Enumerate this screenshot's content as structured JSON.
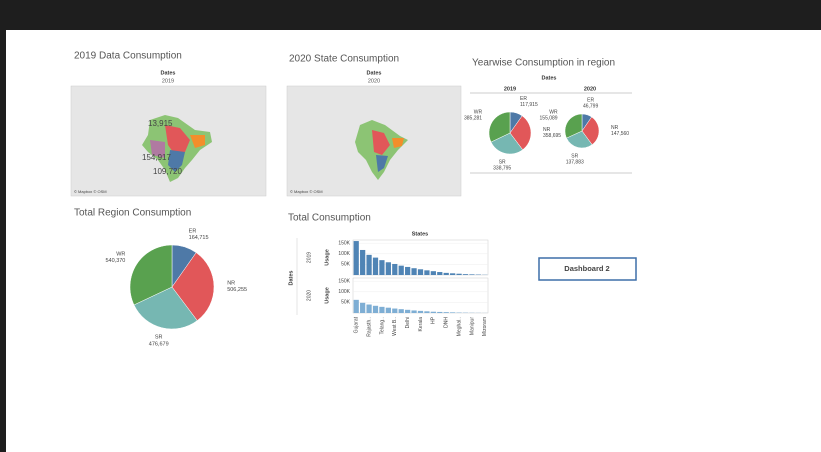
{
  "map_2019": {
    "title": "2019 Data Consumption",
    "header": "Dates",
    "year": "2019",
    "labels": [
      "13,915",
      "154,917",
      "109,720"
    ],
    "attribution": "© Mapbox © OSM"
  },
  "map_2020": {
    "title": "2020 State Consumption",
    "header": "Dates",
    "year": "2020",
    "attribution": "© Mapbox © OSM"
  },
  "yearwise": {
    "title": "Yearwise Consumption in region",
    "header": "Dates",
    "pies": [
      {
        "year": "2019",
        "categories": [
          "ER",
          "NR",
          "SR",
          "WR"
        ],
        "values": [
          117915,
          358695,
          338795,
          385281
        ],
        "value_labels": [
          "117,915",
          "358,695",
          "338,795",
          "385,281"
        ]
      },
      {
        "year": "2020",
        "categories": [
          "ER",
          "NR",
          "SR",
          "WR"
        ],
        "values": [
          46799,
          147560,
          137883,
          155089
        ],
        "value_labels": [
          "46,799",
          "147,560",
          "137,883",
          "155,089"
        ]
      }
    ],
    "colors": [
      "#4e79a7",
      "#e15759",
      "#76b7b2",
      "#59a14f"
    ]
  },
  "total_region": {
    "title": "Total Region Consumption",
    "type": "pie",
    "categories": [
      "ER",
      "NR",
      "SR",
      "WR"
    ],
    "values": [
      164715,
      506255,
      476679,
      540370
    ],
    "value_labels": [
      "164,715",
      "506,255",
      "476,679",
      "540,370"
    ],
    "colors": [
      "#4e79a7",
      "#e15759",
      "#76b7b2",
      "#59a14f"
    ]
  },
  "total_consumption": {
    "title": "Total Consumption",
    "type": "bar",
    "header": "States",
    "facet_label": "Dates",
    "y_label": "Usage",
    "categories": [
      "Gujarat",
      null,
      "Rajasth..",
      null,
      "Telang..",
      null,
      "West B..",
      null,
      "Delhi",
      null,
      "Kerala",
      null,
      "HP",
      null,
      "DNH",
      null,
      "Meghal..",
      null,
      "Manipur",
      null,
      "Mizoram"
    ],
    "rows": [
      {
        "year": "2019",
        "color": "#4f84b5",
        "values": [
          160000,
          118000,
          95000,
          82000,
          70000,
          60000,
          52000,
          44000,
          38000,
          32000,
          27000,
          22000,
          18000,
          14000,
          10000,
          8000,
          6000,
          4000,
          3000,
          2000,
          1000
        ]
      },
      {
        "year": "2020",
        "color": "#7eaed4",
        "values": [
          62000,
          48000,
          40000,
          34000,
          29000,
          25000,
          21000,
          18000,
          15000,
          12000,
          10000,
          8000,
          6000,
          5000,
          4000,
          3000,
          2000,
          1500,
          1000,
          700,
          400
        ]
      }
    ],
    "ylim": [
      0,
      165000
    ],
    "yticks": [
      {
        "value": 50000,
        "label": "50K"
      },
      {
        "value": 100000,
        "label": "100K"
      },
      {
        "value": 150000,
        "label": "150K"
      }
    ]
  },
  "button": {
    "label": "Dashboard 2"
  }
}
